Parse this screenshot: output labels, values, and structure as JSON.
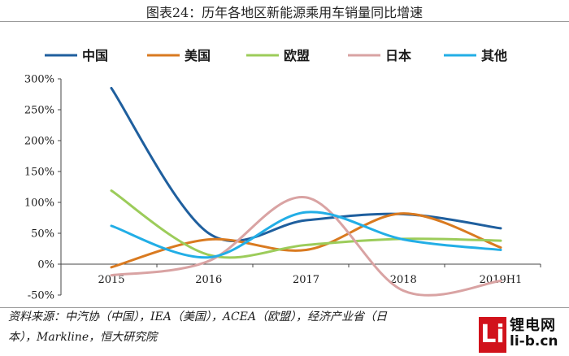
{
  "title": "图表24：历年各地区新能源乘用车销量同比增速",
  "source_text": "资料来源：中汽协（中国），IEA（美国），ACEA（欧盟），经济产业省（日本），Markline，恒大研究院",
  "logo": {
    "letter": "Li",
    "cn": "锂电网",
    "domain": "li-b.cn"
  },
  "chart_data": {
    "type": "line",
    "smooth": true,
    "categories": [
      "2015",
      "2016",
      "2017",
      "2018",
      "2019H1"
    ],
    "yticks": [
      "300%",
      "250%",
      "200%",
      "150%",
      "100%",
      "50%",
      "0%",
      "-50%"
    ],
    "ylim": [
      -50,
      300
    ],
    "grid": false,
    "legend_position": "top",
    "series": [
      {
        "name": "中国",
        "color": "#1f5f9e",
        "values": [
          285,
          50,
          71,
          81,
          58
        ]
      },
      {
        "name": "美国",
        "color": "#d97a20",
        "values": [
          -5,
          40,
          23,
          82,
          27
        ]
      },
      {
        "name": "欧盟",
        "color": "#9ccc5a",
        "values": [
          119,
          15,
          31,
          41,
          38
        ]
      },
      {
        "name": "日本",
        "color": "#d9a3a3",
        "values": [
          -18,
          5,
          108,
          -43,
          -27
        ]
      },
      {
        "name": "其他",
        "color": "#22aee6",
        "values": [
          62,
          11,
          84,
          40,
          23
        ]
      }
    ]
  }
}
